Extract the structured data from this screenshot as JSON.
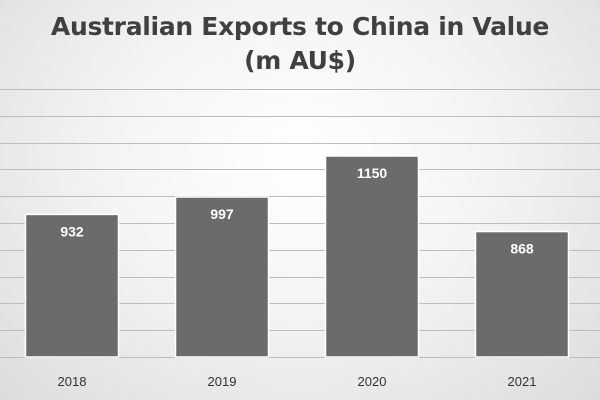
{
  "chart_data": {
    "type": "bar",
    "title": "Australian Exports to China in Value",
    "subtitle": "(m AU$)",
    "categories": [
      "2018",
      "2019",
      "2020",
      "2021"
    ],
    "values": [
      932,
      997,
      1150,
      868
    ],
    "data_labels": [
      "932",
      "997",
      "1150",
      "868"
    ],
    "xlabel": "",
    "ylabel": "",
    "ylim": [
      400,
      1400
    ],
    "y_axis_visible": false,
    "grid": true,
    "legend": "none",
    "bar_color": "#6b6b6b",
    "label_color": "#ffffff"
  }
}
